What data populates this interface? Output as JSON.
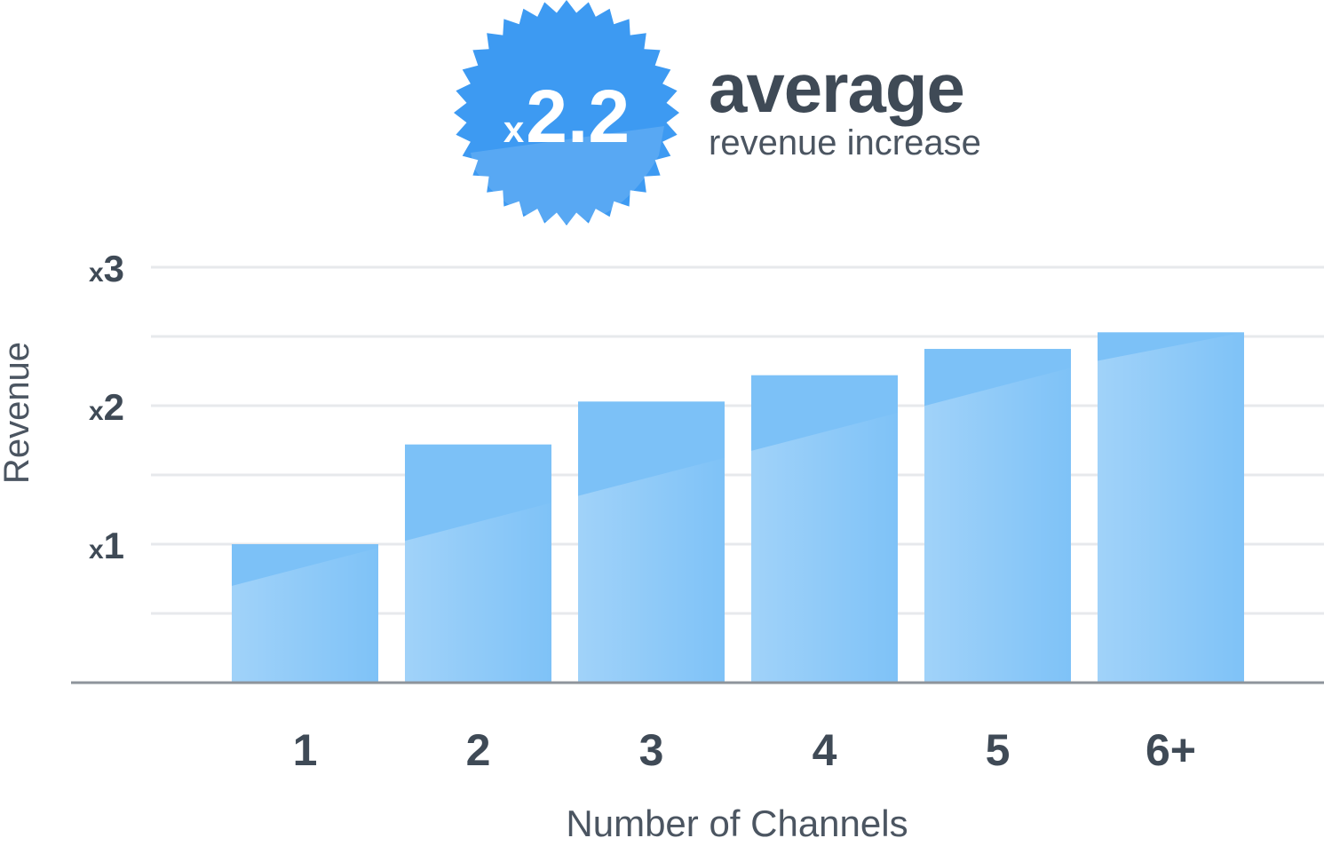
{
  "badge": {
    "prefix": "x",
    "value": "2.2",
    "color": "#3d9af2"
  },
  "headline": {
    "main": "average",
    "sub": "revenue increase"
  },
  "chart_data": {
    "type": "bar",
    "categories": [
      "1",
      "2",
      "3",
      "4",
      "5",
      "6+"
    ],
    "values": [
      1.0,
      1.72,
      2.03,
      2.22,
      2.41,
      2.53
    ],
    "xlabel": "Number of Channels",
    "ylabel": "Revenue",
    "ylim": [
      0,
      3
    ],
    "yticks": [
      {
        "value": 1,
        "prefix": "x",
        "label": "1"
      },
      {
        "value": 2,
        "prefix": "x",
        "label": "2"
      },
      {
        "value": 3,
        "prefix": "x",
        "label": "3"
      }
    ],
    "grid": true,
    "bar_color": "#7cc1f7",
    "bar_color_light": "#a3d3fa",
    "text_color": "#3f4a56"
  }
}
